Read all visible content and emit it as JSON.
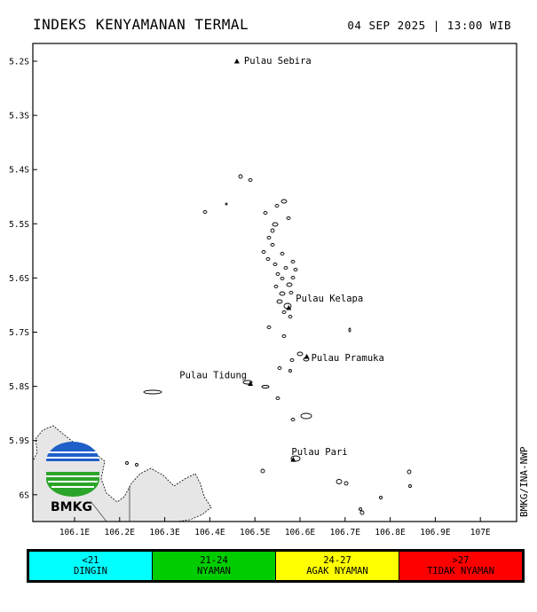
{
  "header": {
    "title": "INDEKS KENYAMANAN TERMAL",
    "datetime": "04 SEP 2025 | 13:00 WIB"
  },
  "map": {
    "lon_ticks": [
      "106.1E",
      "106.2E",
      "106.3E",
      "106.4E",
      "106.5E",
      "106.6E",
      "106.7E",
      "106.8E",
      "106.9E",
      "107E"
    ],
    "lat_ticks": [
      "5.2S",
      "5.3S",
      "5.4S",
      "5.5S",
      "5.6S",
      "5.7S",
      "5.8S",
      "5.9S",
      "6S"
    ],
    "places": [
      {
        "name": "Pulau Sebira",
        "lon": 106.46,
        "lat": -5.2
      },
      {
        "name": "Pulau Kelapa",
        "lon": 106.575,
        "lat": -5.655
      },
      {
        "name": "Pulau Pramuka",
        "lon": 106.615,
        "lat": -5.745
      },
      {
        "name": "Pulau Tidung",
        "lon": 106.49,
        "lat": -5.795
      },
      {
        "name": "Pulau Pari",
        "lon": 106.585,
        "lat": -5.935
      }
    ]
  },
  "logo": {
    "text": "BMKG"
  },
  "credit": "BMKG/INA-NWP",
  "legend": [
    {
      "range": "<21",
      "label": "DINGIN",
      "color": "#00ffff"
    },
    {
      "range": "21-24",
      "label": "NYAMAN",
      "color": "#00cc00"
    },
    {
      "range": "24-27",
      "label": "AGAK NYAMAN",
      "color": "#ffff00"
    },
    {
      "range": ">27",
      "label": "TIDAK NYAMAN",
      "color": "#ff0000"
    }
  ]
}
